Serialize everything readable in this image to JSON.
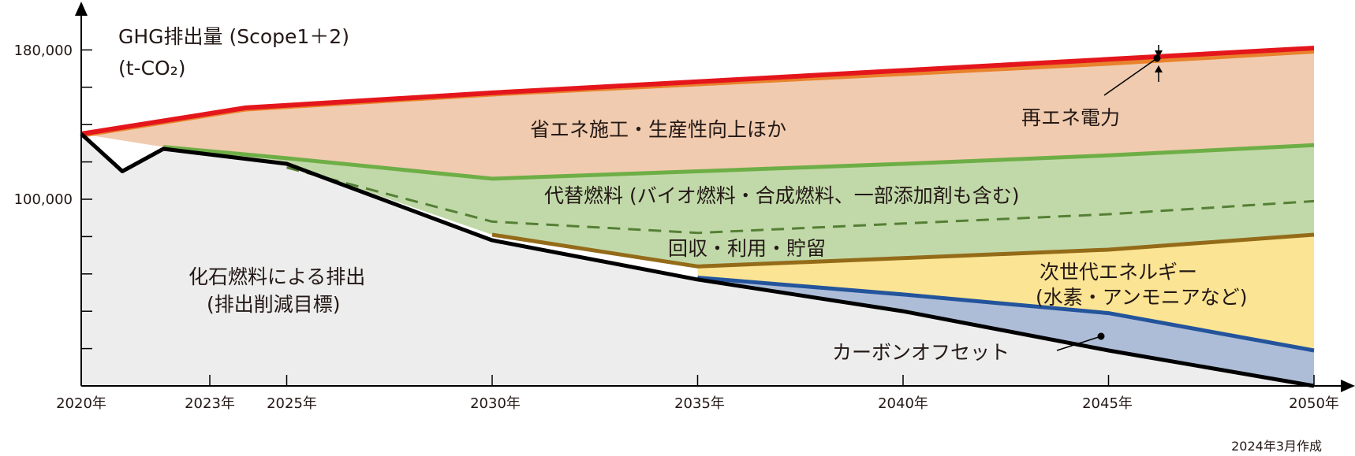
{
  "chart_data": {
    "type": "area",
    "title": "GHG排出量 (Scope1＋2)",
    "unit": "(t-CO₂)",
    "x_ticks": [
      "2020年",
      "2023年",
      "2025年",
      "2030年",
      "2035年",
      "2040年",
      "2045年",
      "2050年"
    ],
    "y_ticks": [
      "180,000",
      "100,000"
    ],
    "xlim": [
      2020,
      2050
    ],
    "ylim": [
      0,
      200000
    ],
    "boundaries": {
      "total_with_renewables": {
        "x": [
          2020,
          2024,
          2030,
          2035,
          2040,
          2045,
          2050
        ],
        "y": [
          135000,
          149000,
          157000,
          163000,
          169000,
          175000,
          181000
        ]
      },
      "total_before_renewables": {
        "x": [
          2020,
          2024,
          2030,
          2035,
          2040,
          2045,
          2050
        ],
        "y": [
          133000,
          147000,
          155000,
          160500,
          166000,
          171500,
          178000
        ]
      },
      "after_energy_saving": {
        "x": [
          2020,
          2022,
          2025,
          2030,
          2035,
          2040,
          2045,
          2050
        ],
        "y": [
          135000,
          128000,
          122000,
          111000,
          115000,
          119000,
          123500,
          129000
        ]
      },
      "alternative_fuels_dashed": {
        "x": [
          2025,
          2030,
          2035,
          2040,
          2045,
          2050
        ],
        "y": [
          117000,
          88000,
          82000,
          87000,
          92000,
          99000
        ]
      },
      "after_alternative_fuels": {
        "x": [
          2030,
          2035,
          2040,
          2045,
          2050
        ],
        "y": [
          81000,
          64000,
          68500,
          73000,
          81000
        ]
      },
      "after_ccus": {
        "x": [
          2035,
          2040,
          2045,
          2050
        ],
        "y": [
          58000,
          49000,
          39000,
          19000
        ]
      },
      "fossil_fuel_emissions": {
        "x": [
          2020,
          2021,
          2022,
          2025,
          2030,
          2035,
          2040,
          2045,
          2050
        ],
        "y": [
          135000,
          115000,
          127000,
          119000,
          78000,
          57000,
          40000,
          19000,
          0
        ]
      }
    },
    "series": [
      {
        "name": "再エネ電力",
        "color": "#e8822c"
      },
      {
        "name": "省エネ施工・生産性向上ほか",
        "color": "#f0cbaf"
      },
      {
        "name": "代替燃料 (バイオ燃料・合成燃料、一部添加剤も含む)",
        "color": "#c1d9a9"
      },
      {
        "name": "回収・利用・貯留",
        "color": "#c1d9a9"
      },
      {
        "name": "次世代エネルギー",
        "color": "#fbe493"
      },
      {
        "name": "カーボンオフセット",
        "color": "#aebdd7"
      },
      {
        "name": "化石燃料による排出",
        "color": "#ecedec"
      }
    ],
    "annotations": {
      "renewables": "再エネ電力",
      "energy_saving": "省エネ施工・生産性向上ほか",
      "alt_fuels": "代替燃料 (バイオ燃料・合成燃料、一部添加剤も含む)",
      "ccus": "回収・利用・貯留",
      "next_gen_line1": "次世代エネルギー",
      "next_gen_line2": "(水素・アンモニアなど)",
      "offset": "カーボンオフセット",
      "fossil_line1": "化石燃料による排出",
      "fossil_line2": "(排出削減目標)"
    },
    "footnote": "2024年3月作成",
    "colors": {
      "red_line": "#e4161c",
      "renewables_fill": "#e8822c",
      "energy_saving_fill": "#f0cbaf",
      "green_line": "#6eae46",
      "green_fill": "#c1d9a9",
      "dashed_line": "#557f35",
      "brown_line": "#946b19",
      "yellow_fill": "#fbe493",
      "blue_line": "#23549c",
      "blue_fill": "#aebdd7",
      "fossil_fill": "#ecedec",
      "fossil_line": "#000000"
    }
  }
}
